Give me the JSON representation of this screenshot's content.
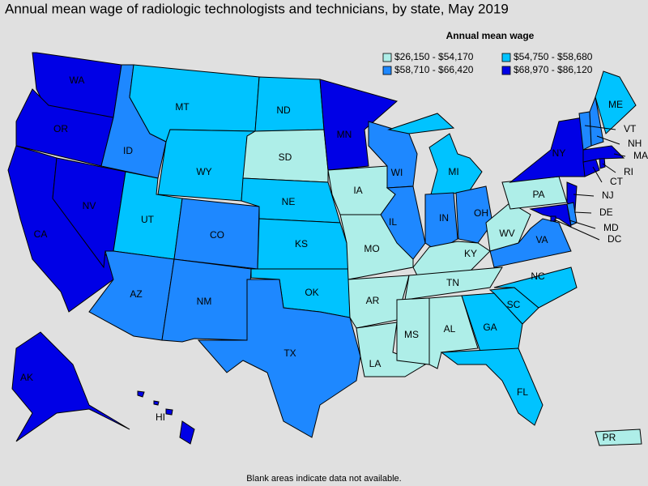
{
  "title": "Annual mean wage of radiologic technologists and technicians, by state, May 2019",
  "legend": {
    "title": "Annual mean wage",
    "items": [
      {
        "label": "$26,150 - $54,170",
        "color": "#aeeee8"
      },
      {
        "label": "$54,750 - $58,680",
        "color": "#00c3ff"
      },
      {
        "label": "$58,710 - $66,420",
        "color": "#1e88ff"
      },
      {
        "label": "$68,970 - $86,120",
        "color": "#0000e6"
      }
    ]
  },
  "states": [
    {
      "abbr": "WA",
      "class": 3
    },
    {
      "abbr": "OR",
      "class": 3
    },
    {
      "abbr": "CA",
      "class": 3
    },
    {
      "abbr": "NV",
      "class": 3
    },
    {
      "abbr": "ID",
      "class": 2
    },
    {
      "abbr": "MT",
      "class": 1
    },
    {
      "abbr": "WY",
      "class": 1
    },
    {
      "abbr": "UT",
      "class": 1
    },
    {
      "abbr": "CO",
      "class": 2
    },
    {
      "abbr": "AZ",
      "class": 2
    },
    {
      "abbr": "NM",
      "class": 2
    },
    {
      "abbr": "ND",
      "class": 1
    },
    {
      "abbr": "SD",
      "class": 0
    },
    {
      "abbr": "NE",
      "class": 1
    },
    {
      "abbr": "KS",
      "class": 1
    },
    {
      "abbr": "OK",
      "class": 1
    },
    {
      "abbr": "TX",
      "class": 2
    },
    {
      "abbr": "MN",
      "class": 3
    },
    {
      "abbr": "IA",
      "class": 0
    },
    {
      "abbr": "MO",
      "class": 0
    },
    {
      "abbr": "AR",
      "class": 0
    },
    {
      "abbr": "LA",
      "class": 0
    },
    {
      "abbr": "WI",
      "class": 2
    },
    {
      "abbr": "IL",
      "class": 2
    },
    {
      "abbr": "MI",
      "class": 1
    },
    {
      "abbr": "IN",
      "class": 2
    },
    {
      "abbr": "OH",
      "class": 2
    },
    {
      "abbr": "KY",
      "class": 0
    },
    {
      "abbr": "TN",
      "class": 0
    },
    {
      "abbr": "MS",
      "class": 0
    },
    {
      "abbr": "AL",
      "class": 0
    },
    {
      "abbr": "GA",
      "class": 1
    },
    {
      "abbr": "FL",
      "class": 1
    },
    {
      "abbr": "SC",
      "class": 1
    },
    {
      "abbr": "NC",
      "class": 1
    },
    {
      "abbr": "VA",
      "class": 2
    },
    {
      "abbr": "WV",
      "class": 0
    },
    {
      "abbr": "PA",
      "class": 0
    },
    {
      "abbr": "NY",
      "class": 3
    },
    {
      "abbr": "NJ",
      "class": 3
    },
    {
      "abbr": "MD",
      "class": 3
    },
    {
      "abbr": "DE",
      "class": 2
    },
    {
      "abbr": "DC",
      "class": 3
    },
    {
      "abbr": "CT",
      "class": 3
    },
    {
      "abbr": "RI",
      "class": 3
    },
    {
      "abbr": "MA",
      "class": 3
    },
    {
      "abbr": "VT",
      "class": 2
    },
    {
      "abbr": "NH",
      "class": 2
    },
    {
      "abbr": "ME",
      "class": 1
    },
    {
      "abbr": "AK",
      "class": 3
    },
    {
      "abbr": "HI",
      "class": 3
    },
    {
      "abbr": "PR",
      "class": 0
    }
  ],
  "note": "Blank areas indicate data not available."
}
